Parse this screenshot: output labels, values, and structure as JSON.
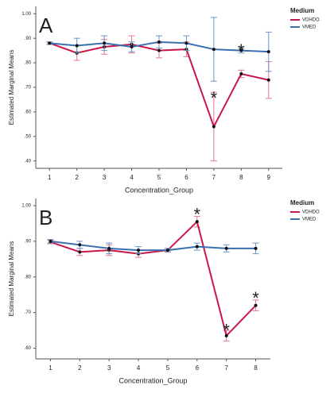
{
  "chart_data": [
    {
      "type": "line",
      "panel": "A",
      "xlabel": "Concentration_Group",
      "ylabel": "Estimated Marginal Means",
      "legend_title": "Medium",
      "legend": "upper right",
      "categories": [
        "1",
        "2",
        "3",
        "4",
        "5",
        "6",
        "7",
        "8",
        "9"
      ],
      "ylim": [
        0.37,
        1.03
      ],
      "yticks": [
        {
          "value": 0.4,
          "label": ".40"
        },
        {
          "value": 0.5,
          "label": ".50"
        },
        {
          "value": 0.6,
          "label": ".60"
        },
        {
          "value": 0.7,
          "label": ".70"
        },
        {
          "value": 0.8,
          "label": ".80"
        },
        {
          "value": 0.9,
          "label": ".90"
        },
        {
          "value": 1.0,
          "label": "1.00"
        }
      ],
      "series": [
        {
          "name": "VDHDO",
          "color": "#c8174a",
          "error_color": "#e07894",
          "values": [
            0.88,
            0.84,
            0.865,
            0.875,
            0.85,
            0.855,
            0.54,
            0.755,
            0.73
          ],
          "errors": [
            0.005,
            0.03,
            0.03,
            0.035,
            0.03,
            0.03,
            0.14,
            0.015,
            0.075
          ]
        },
        {
          "name": "VMED",
          "color": "#3a6fb0",
          "error_color": "#6f93c9",
          "values": [
            0.88,
            0.87,
            0.88,
            0.865,
            0.885,
            0.88,
            0.855,
            0.85,
            0.845
          ],
          "errors": [
            0.005,
            0.03,
            0.03,
            0.02,
            0.025,
            0.03,
            0.13,
            0.01,
            0.08
          ]
        }
      ],
      "annotations": [
        {
          "text": "*",
          "x": "7",
          "y": 0.67
        },
        {
          "text": "*",
          "x": "8",
          "y": 0.865
        }
      ]
    },
    {
      "type": "line",
      "panel": "B",
      "xlabel": "Concentration_Group",
      "ylabel": "Estimated Marginal Means",
      "legend_title": "Medium",
      "legend": "upper right",
      "categories": [
        "1",
        "2",
        "3",
        "4",
        "5",
        "6",
        "7",
        "8"
      ],
      "ylim": [
        0.57,
        1.02
      ],
      "yticks": [
        {
          "value": 0.6,
          "label": ".60"
        },
        {
          "value": 0.7,
          "label": ".70"
        },
        {
          "value": 0.8,
          "label": ".80"
        },
        {
          "value": 0.9,
          "label": ".90"
        },
        {
          "value": 1.0,
          "label": "1.00"
        }
      ],
      "series": [
        {
          "name": "VDHDO",
          "color": "#c8174a",
          "error_color": "#e07894",
          "values": [
            0.898,
            0.87,
            0.875,
            0.865,
            0.875,
            0.955,
            0.635,
            0.72
          ],
          "errors": [
            0.005,
            0.01,
            0.015,
            0.01,
            0.005,
            0.015,
            0.015,
            0.015
          ]
        },
        {
          "name": "VMED",
          "color": "#3a6fb0",
          "error_color": "#6f93c9",
          "values": [
            0.9,
            0.89,
            0.88,
            0.875,
            0.875,
            0.885,
            0.88,
            0.88
          ],
          "errors": [
            0.005,
            0.01,
            0.015,
            0.01,
            0.005,
            0.01,
            0.01,
            0.015
          ]
        }
      ],
      "annotations": [
        {
          "text": "*",
          "x": "6",
          "y": 0.985
        },
        {
          "text": "*",
          "x": "7",
          "y": 0.66
        },
        {
          "text": "*",
          "x": "8",
          "y": 0.75
        }
      ]
    }
  ]
}
